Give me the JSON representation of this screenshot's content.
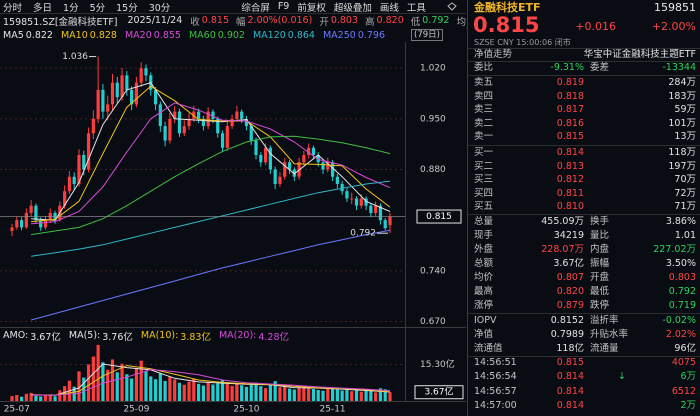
{
  "chart_data": {
    "type": "candlestick",
    "categories": [
      null,
      "25-07",
      null,
      null,
      null,
      null,
      null,
      null,
      null,
      null,
      null,
      null,
      null,
      null,
      null,
      null,
      null,
      null,
      null,
      null,
      null,
      null,
      null,
      null,
      null,
      null,
      "25-09",
      null,
      null,
      null,
      null,
      null,
      null,
      null,
      null,
      null,
      null,
      null,
      null,
      null,
      null,
      null,
      null,
      null,
      null,
      null,
      null,
      null,
      null,
      "25-10",
      null,
      null,
      null,
      null,
      null,
      null,
      null,
      null,
      null,
      null,
      null,
      null,
      null,
      null,
      null,
      null,
      null,
      "25-11",
      null,
      null,
      null,
      null,
      null,
      null,
      null,
      null,
      null,
      null,
      null,
      null
    ],
    "candles": [
      [
        0.795,
        0.805,
        0.788,
        0.8
      ],
      [
        0.8,
        0.815,
        0.797,
        0.81
      ],
      [
        0.81,
        0.814,
        0.796,
        0.8
      ],
      [
        0.8,
        0.826,
        0.798,
        0.82
      ],
      [
        0.82,
        0.838,
        0.815,
        0.83
      ],
      [
        0.83,
        0.833,
        0.806,
        0.81
      ],
      [
        0.81,
        0.814,
        0.795,
        0.8
      ],
      [
        0.8,
        0.816,
        0.797,
        0.81
      ],
      [
        0.81,
        0.826,
        0.806,
        0.82
      ],
      [
        0.82,
        0.823,
        0.805,
        0.81
      ],
      [
        0.81,
        0.836,
        0.808,
        0.83
      ],
      [
        0.83,
        0.858,
        0.826,
        0.85
      ],
      [
        0.85,
        0.878,
        0.846,
        0.87
      ],
      [
        0.87,
        0.876,
        0.852,
        0.86
      ],
      [
        0.86,
        0.908,
        0.856,
        0.9
      ],
      [
        0.9,
        0.906,
        0.872,
        0.88
      ],
      [
        0.88,
        0.938,
        0.876,
        0.93
      ],
      [
        0.93,
        0.962,
        0.922,
        0.95
      ],
      [
        0.95,
        1.036,
        0.944,
        0.99
      ],
      [
        0.99,
        0.998,
        0.95,
        0.96
      ],
      [
        0.96,
        0.982,
        0.948,
        0.97
      ],
      [
        0.97,
        1.012,
        0.962,
        1.0
      ],
      [
        1.0,
        1.008,
        0.972,
        0.98
      ],
      [
        0.98,
        1.02,
        0.975,
        1.01
      ],
      [
        1.01,
        1.016,
        0.982,
        0.99
      ],
      [
        0.99,
        0.995,
        0.962,
        0.97
      ],
      [
        0.97,
        1.008,
        0.966,
        1.0
      ],
      [
        1.0,
        1.028,
        0.994,
        1.02
      ],
      [
        1.02,
        1.025,
        1.002,
        1.01
      ],
      [
        1.01,
        1.014,
        0.982,
        0.99
      ],
      [
        0.99,
        0.994,
        0.962,
        0.97
      ],
      [
        0.97,
        0.974,
        0.932,
        0.94
      ],
      [
        0.94,
        0.946,
        0.912,
        0.92
      ],
      [
        0.92,
        0.958,
        0.916,
        0.95
      ],
      [
        0.95,
        0.968,
        0.944,
        0.96
      ],
      [
        0.96,
        0.964,
        0.925,
        0.93
      ],
      [
        0.93,
        0.948,
        0.926,
        0.94
      ],
      [
        0.94,
        0.958,
        0.935,
        0.95
      ],
      [
        0.95,
        0.968,
        0.946,
        0.96
      ],
      [
        0.96,
        0.964,
        0.944,
        0.95
      ],
      [
        0.95,
        0.954,
        0.934,
        0.94
      ],
      [
        0.94,
        0.966,
        0.936,
        0.96
      ],
      [
        0.96,
        0.963,
        0.944,
        0.95
      ],
      [
        0.95,
        0.953,
        0.924,
        0.93
      ],
      [
        0.93,
        0.934,
        0.904,
        0.91
      ],
      [
        0.91,
        0.946,
        0.906,
        0.94
      ],
      [
        0.94,
        0.956,
        0.936,
        0.95
      ],
      [
        0.95,
        0.968,
        0.946,
        0.96
      ],
      [
        0.96,
        0.963,
        0.944,
        0.95
      ],
      [
        0.95,
        0.954,
        0.934,
        0.94
      ],
      [
        0.94,
        0.943,
        0.914,
        0.92
      ],
      [
        0.92,
        0.924,
        0.894,
        0.9
      ],
      [
        0.9,
        0.904,
        0.884,
        0.89
      ],
      [
        0.89,
        0.916,
        0.886,
        0.91
      ],
      [
        0.91,
        0.913,
        0.874,
        0.88
      ],
      [
        0.88,
        0.884,
        0.853,
        0.86
      ],
      [
        0.86,
        0.876,
        0.856,
        0.87
      ],
      [
        0.87,
        0.896,
        0.866,
        0.89
      ],
      [
        0.89,
        0.893,
        0.874,
        0.88
      ],
      [
        0.88,
        0.883,
        0.864,
        0.87
      ],
      [
        0.87,
        0.896,
        0.866,
        0.89
      ],
      [
        0.89,
        0.906,
        0.886,
        0.9
      ],
      [
        0.9,
        0.916,
        0.895,
        0.91
      ],
      [
        0.91,
        0.913,
        0.894,
        0.9
      ],
      [
        0.9,
        0.904,
        0.884,
        0.89
      ],
      [
        0.89,
        0.894,
        0.874,
        0.88
      ],
      [
        0.88,
        0.896,
        0.876,
        0.89
      ],
      [
        0.89,
        0.893,
        0.864,
        0.87
      ],
      [
        0.87,
        0.874,
        0.854,
        0.86
      ],
      [
        0.86,
        0.864,
        0.845,
        0.85
      ],
      [
        0.85,
        0.854,
        0.835,
        0.84
      ],
      [
        0.84,
        0.848,
        0.832,
        0.84
      ],
      [
        0.84,
        0.843,
        0.824,
        0.83
      ],
      [
        0.83,
        0.846,
        0.826,
        0.84
      ],
      [
        0.84,
        0.843,
        0.824,
        0.83
      ],
      [
        0.83,
        0.833,
        0.814,
        0.82
      ],
      [
        0.82,
        0.836,
        0.816,
        0.83
      ],
      [
        0.83,
        0.833,
        0.804,
        0.81
      ],
      [
        0.81,
        0.813,
        0.796,
        0.799
      ],
      [
        0.803,
        0.82,
        0.792,
        0.815
      ]
    ],
    "up_color": "#ff3d3d",
    "down_color": "#22cfd0",
    "ylim": [
      0.661,
      1.052
    ],
    "yticks": [
      {
        "value": 0.67,
        "label": "0.670"
      },
      {
        "value": 0.74,
        "label": "0.740"
      },
      {
        "value": 0.88,
        "label": "0.880"
      },
      {
        "value": 0.95,
        "label": "0.950"
      },
      {
        "value": 1.02,
        "label": "1.020"
      }
    ],
    "grid": true,
    "ma_period_label": "(79日)",
    "ma_index": [
      4,
      9,
      14,
      19,
      24,
      29,
      34,
      39,
      44,
      49,
      54,
      59,
      64,
      69,
      74,
      79
    ],
    "ma": [
      {
        "name": "MA5",
        "color": "#e6e6e6",
        "values": [
          0.812,
          0.81,
          0.862,
          0.942,
          0.99,
          1.0,
          0.95,
          0.948,
          0.946,
          0.949,
          0.902,
          0.874,
          0.9,
          0.87,
          0.836,
          0.822
        ]
      },
      {
        "name": "MA10",
        "color": "#f0c419",
        "values": [
          0.808,
          0.811,
          0.836,
          0.902,
          0.966,
          0.995,
          0.975,
          0.949,
          0.947,
          0.947,
          0.925,
          0.888,
          0.887,
          0.885,
          0.853,
          0.828
        ]
      },
      {
        "name": "MA20",
        "color": "#d84ad8",
        "values": [
          0.805,
          0.808,
          0.822,
          0.856,
          0.904,
          0.95,
          0.972,
          0.962,
          0.948,
          0.947,
          0.936,
          0.918,
          0.894,
          0.886,
          0.869,
          0.855
        ]
      },
      {
        "name": "MA60",
        "color": "#3fbf3f",
        "values": [
          0.79,
          0.795,
          0.8,
          0.812,
          0.83,
          0.85,
          0.87,
          0.888,
          0.905,
          0.918,
          0.925,
          0.926,
          0.922,
          0.917,
          0.91,
          0.902
        ]
      },
      {
        "name": "MA120",
        "color": "#2fb8c8",
        "values": [
          0.76,
          0.765,
          0.77,
          0.776,
          0.784,
          0.792,
          0.8,
          0.808,
          0.816,
          0.824,
          0.832,
          0.84,
          0.848,
          0.854,
          0.86,
          0.864
        ]
      },
      {
        "name": "MA250",
        "color": "#6a78ff",
        "values": [
          0.672,
          0.681,
          0.69,
          0.699,
          0.708,
          0.717,
          0.726,
          0.735,
          0.744,
          0.752,
          0.76,
          0.768,
          0.776,
          0.783,
          0.79,
          0.796
        ]
      }
    ],
    "volume": {
      "name": "AMO:",
      "value_label": "3.67亿",
      "values": [
        2.1,
        2.5,
        1.8,
        3.0,
        3.4,
        2.2,
        1.9,
        2.3,
        2.8,
        2.0,
        4.5,
        6.2,
        8.5,
        6.0,
        12.4,
        9.8,
        15.3,
        18.6,
        23.5,
        16.2,
        13.1,
        17.4,
        12.0,
        15.6,
        11.2,
        9.4,
        13.8,
        16.9,
        12.5,
        10.3,
        9.1,
        11.6,
        8.4,
        10.2,
        9.0,
        7.6,
        6.8,
        8.1,
        9.3,
        7.2,
        6.5,
        8.0,
        6.9,
        7.4,
        8.8,
        7.9,
        6.3,
        7.5,
        6.6,
        5.9,
        6.8,
        7.7,
        6.2,
        5.4,
        7.0,
        8.3,
        5.8,
        6.1,
        5.2,
        4.8,
        5.6,
        6.4,
        5.9,
        5.0,
        4.6,
        4.3,
        5.1,
        5.5,
        4.9,
        4.4,
        5.2,
        4.1,
        4.7,
        3.9,
        4.5,
        4.8,
        3.6,
        5.3,
        4.9,
        3.67
      ],
      "ylim": [
        0,
        24.7
      ],
      "yticks": [
        {
          "value": 15.3,
          "label": "15.30亿"
        }
      ]
    },
    "volume_ma": [
      {
        "name": "MA(5):",
        "color": "#e6e6e6",
        "value_label": "3.76亿",
        "values": [
          2.6,
          2.4,
          5.5,
          15.5,
          14.0,
          13.0,
          9.5,
          8.0,
          7.5,
          7.0,
          6.8,
          5.6,
          5.4,
          5.0,
          4.4,
          3.76
        ]
      },
      {
        "name": "MA(10):",
        "color": "#f0c419",
        "value_label": "3.83亿",
        "values": [
          2.5,
          2.5,
          4.0,
          10.5,
          14.8,
          13.5,
          11.2,
          8.8,
          7.8,
          7.2,
          6.9,
          6.2,
          5.5,
          5.2,
          4.7,
          3.83
        ]
      },
      {
        "name": "MA(20):",
        "color": "#d84ad8",
        "value_label": "4.28亿",
        "values": [
          2.4,
          2.5,
          3.2,
          7.5,
          10.0,
          13.2,
          12.3,
          11.0,
          8.8,
          7.6,
          7.1,
          6.6,
          5.9,
          5.4,
          5.0,
          4.28
        ]
      }
    ]
  },
  "toolbar": {
    "left": [
      "分时",
      "多日",
      "1分",
      "5分",
      "15分",
      "30分"
    ],
    "right": [
      "综合屏",
      "F9",
      "前复权",
      "超级叠加",
      "画线",
      "工具"
    ]
  },
  "quote_bar": {
    "symbol": "159851.SZ[金融科技ETF]",
    "date": "2025/11/24",
    "items": [
      {
        "label": "收",
        "value": "0.815",
        "tone": "up"
      },
      {
        "label": "幅",
        "value": "2.00%(0.016)",
        "tone": "up"
      },
      {
        "label": "开",
        "value": "0.803",
        "tone": "up"
      },
      {
        "label": "高",
        "value": "0.820",
        "tone": "up"
      },
      {
        "label": "低",
        "value": "0.792",
        "tone": "down"
      },
      {
        "label": "均"
      }
    ]
  },
  "panel": {
    "colors": {
      "up": "#ff4545",
      "down": "#2bd45a",
      "flat": "#e2e2e2"
    },
    "name": "金融科技ETF",
    "code": "159851",
    "price": "0.815",
    "change": "+0.016",
    "percent": "+2.00%",
    "meta": "SZSE  CNY  15:00:06  闭市",
    "nav_link": "净值走势",
    "fund_name": "华宝中证金融科技主题ETF",
    "ratio": {
      "cells": [
        "委比",
        "-9.31%",
        "委差",
        "-13344"
      ],
      "tone": [
        "down",
        "down"
      ]
    },
    "asks": [
      [
        "卖五",
        "0.819",
        "284万"
      ],
      [
        "卖四",
        "0.818",
        "183万"
      ],
      [
        "卖三",
        "0.817",
        "59万"
      ],
      [
        "卖二",
        "0.816",
        "101万"
      ],
      [
        "卖一",
        "0.815",
        "13万"
      ]
    ],
    "bids": [
      [
        "买一",
        "0.814",
        "118万"
      ],
      [
        "买二",
        "0.813",
        "197万"
      ],
      [
        "买三",
        "0.812",
        "70万"
      ],
      [
        "买四",
        "0.811",
        "72万"
      ],
      [
        "买五",
        "0.810",
        "71万"
      ]
    ],
    "stats": [
      {
        "cells": [
          "总量",
          "455.09万",
          "换手",
          "3.86%"
        ],
        "tone": [
          "flat",
          "flat"
        ]
      },
      {
        "cells": [
          "现手",
          "34219",
          "量比",
          "1.01"
        ],
        "tone": [
          "flat",
          "flat"
        ]
      },
      {
        "cells": [
          "外盘",
          "228.07万",
          "内盘",
          "227.02万"
        ],
        "tone": [
          "up",
          "down"
        ]
      },
      {
        "cells": [
          "总额",
          "3.67亿",
          "振幅",
          "3.50%"
        ],
        "tone": [
          "flat",
          "flat"
        ]
      },
      {
        "cells": [
          "均价",
          "0.807",
          "开盘",
          "0.803"
        ],
        "tone": [
          "up",
          "up"
        ]
      },
      {
        "cells": [
          "最高",
          "0.820",
          "最低",
          "0.792"
        ],
        "tone": [
          "up",
          "down"
        ]
      },
      {
        "cells": [
          "涨停",
          "0.879",
          "跌停",
          "0.719"
        ],
        "tone": [
          "up",
          "down"
        ]
      }
    ],
    "fund": [
      {
        "cells": [
          "IOPV",
          "0.8152",
          "溢折率",
          "-0.02%"
        ],
        "tone": [
          "flat",
          "down"
        ]
      },
      {
        "cells": [
          "净值",
          "0.7989",
          "升贴水率",
          "2.02%"
        ],
        "tone": [
          "flat",
          "up"
        ]
      },
      {
        "cells": [
          "流通值",
          "118亿",
          "流通量",
          "96亿"
        ],
        "tone": [
          "flat",
          "flat"
        ]
      }
    ],
    "trades": [
      {
        "time": "14:56:51",
        "price": "0.815",
        "volume": "4075",
        "tone": "up"
      },
      {
        "time": "14:56:54",
        "price": "0.814",
        "flag": "↓",
        "volume": "6万",
        "tone": "down"
      },
      {
        "time": "14:56:57",
        "price": "0.814",
        "volume": "6512",
        "tone": "up"
      },
      {
        "time": "14:57:00",
        "price": "0.814",
        "volume": "2万",
        "tone": "down"
      }
    ]
  }
}
